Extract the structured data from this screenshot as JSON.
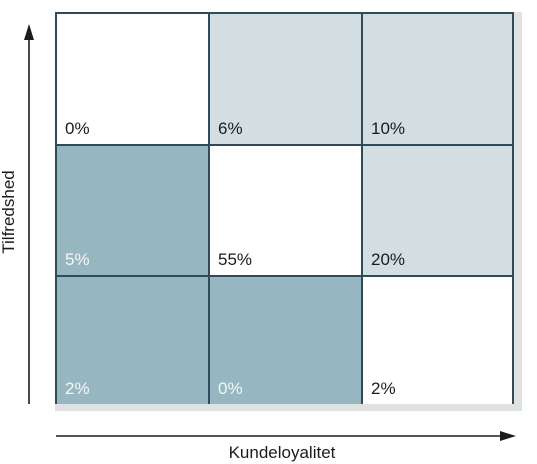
{
  "diagram": {
    "x_axis_label": "Kundeloyalitet",
    "y_axis_label": "Tilfredshed",
    "colors": {
      "border": "#2f4b5b",
      "white": "#ffffff",
      "light": "#d2dee2",
      "dark": "#97b7c0"
    },
    "rows": [
      [
        {
          "value": "0%",
          "shade": "white"
        },
        {
          "value": "6%",
          "shade": "light"
        },
        {
          "value": "10%",
          "shade": "light"
        }
      ],
      [
        {
          "value": "5%",
          "shade": "dark"
        },
        {
          "value": "55%",
          "shade": "white"
        },
        {
          "value": "20%",
          "shade": "light"
        }
      ],
      [
        {
          "value": "2%",
          "shade": "dark"
        },
        {
          "value": "0%",
          "shade": "dark"
        },
        {
          "value": "2%",
          "shade": "white"
        }
      ]
    ]
  }
}
